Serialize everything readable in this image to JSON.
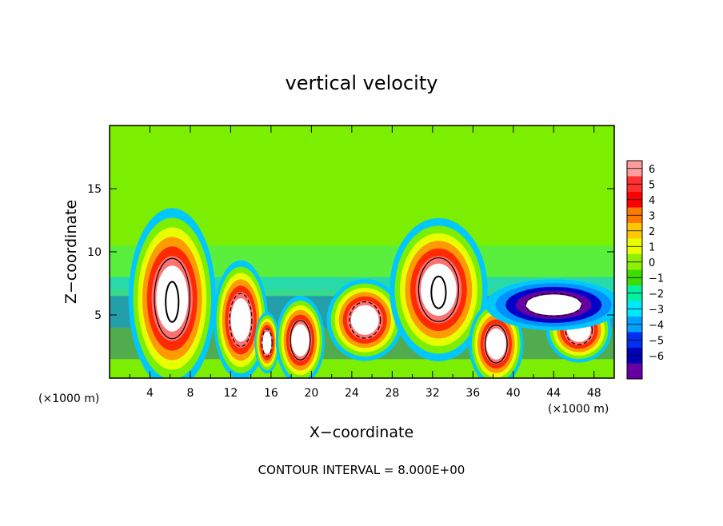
{
  "chart_data": {
    "type": "heatmap",
    "title": "vertical velocity",
    "xlabel": "X−coordinate",
    "ylabel": "Z−coordinate",
    "x_unit": "(×1000 m)",
    "footer": "CONTOUR INTERVAL = 8.000E+00",
    "xlim": [
      0,
      50
    ],
    "ylim": [
      0,
      20
    ],
    "x_ticks": [
      "4",
      "8",
      "12",
      "16",
      "20",
      "24",
      "28",
      "32",
      "36",
      "40",
      "44",
      "48"
    ],
    "y_ticks": [
      "5",
      "10",
      "15"
    ],
    "grid": false,
    "colorbar": {
      "placement": "right",
      "levels": [
        "6",
        "5",
        "4",
        "3",
        "2",
        "1",
        "0",
        "−1",
        "−2",
        "−3",
        "−4",
        "−5",
        "−6"
      ],
      "colors": [
        "#ff9c9c",
        "#ff3030",
        "#ff0000",
        "#ff7a00",
        "#ffc800",
        "#e8ff00",
        "#8cf000",
        "#3cdc00",
        "#00f2a0",
        "#00e8ff",
        "#00a0ff",
        "#0030f0",
        "#0000b4",
        "#6600a0"
      ]
    },
    "features": [
      {
        "x": 6.2,
        "z": 6.3,
        "value": 18,
        "rx": 3.2,
        "rz": 5.3
      },
      {
        "x": 13.0,
        "z": 4.6,
        "value": 10,
        "rx": 2.0,
        "rz": 3.5
      },
      {
        "x": 15.6,
        "z": 2.8,
        "value": 10,
        "rx": 0.9,
        "rz": 1.8
      },
      {
        "x": 18.9,
        "z": 3.0,
        "value": 14,
        "rx": 1.8,
        "rz": 2.6
      },
      {
        "x": 25.3,
        "z": 4.6,
        "value": 10,
        "rx": 2.8,
        "rz": 2.4
      },
      {
        "x": 32.6,
        "z": 7.0,
        "value": 16,
        "rx": 3.6,
        "rz": 4.2
      },
      {
        "x": 38.3,
        "z": 2.7,
        "value": 14,
        "rx": 2.0,
        "rz": 2.5
      },
      {
        "x": 46.5,
        "z": 3.8,
        "value": 10,
        "rx": 2.4,
        "rz": 1.9
      },
      {
        "x": 44.0,
        "z": 5.8,
        "value": -6,
        "rx": 5.0,
        "rz": 1.5
      }
    ]
  }
}
